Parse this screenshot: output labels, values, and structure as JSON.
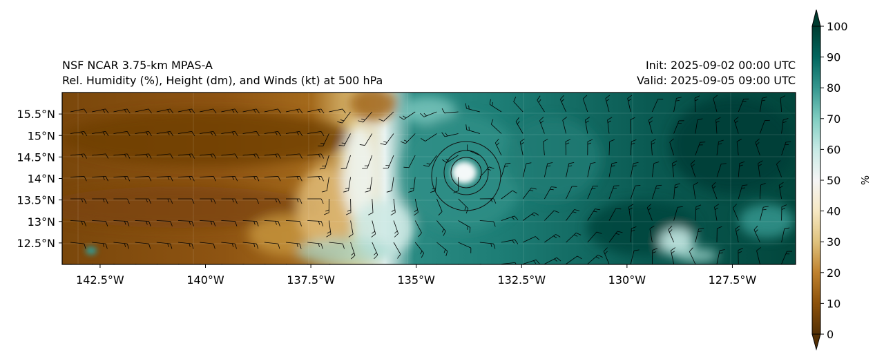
{
  "header": {
    "model": "NSF NCAR 3.75-km MPAS-A",
    "fields": "Rel. Humidity (%), Height (dm), and Winds (kt) at 500 hPa",
    "init": "Init: 2025-09-02 00:00 UTC",
    "valid": "Valid: 2025-09-05 09:00 UTC"
  },
  "map": {
    "lon_range": [
      -143.4,
      -126.0
    ],
    "lat_range": [
      12.0,
      16.0
    ],
    "lat_ticks": [
      {
        "value": 15.5,
        "label": "15.5°N"
      },
      {
        "value": 15.0,
        "label": "15°N"
      },
      {
        "value": 14.5,
        "label": "14.5°N"
      },
      {
        "value": 14.0,
        "label": "14°N"
      },
      {
        "value": 13.5,
        "label": "13.5°N"
      },
      {
        "value": 13.0,
        "label": "13°N"
      },
      {
        "value": 12.5,
        "label": "12.5°N"
      }
    ],
    "lon_ticks": [
      {
        "value": -142.5,
        "label": "142.5°W"
      },
      {
        "value": -140.0,
        "label": "140°W"
      },
      {
        "value": -137.5,
        "label": "137.5°W"
      },
      {
        "value": -135.0,
        "label": "135°W"
      },
      {
        "value": -132.5,
        "label": "132.5°W"
      },
      {
        "value": -130.0,
        "label": "130°W"
      },
      {
        "value": -127.5,
        "label": "127.5°W"
      }
    ],
    "storm_center": {
      "lon": -133.6,
      "lat": 14.1
    }
  },
  "colorbar": {
    "label": "%",
    "ticks": [
      "0",
      "10",
      "20",
      "30",
      "40",
      "50",
      "60",
      "70",
      "80",
      "90",
      "100"
    ],
    "colors": {
      "c0": "#543005",
      "c10": "#8c510a",
      "c20": "#bf812d",
      "c30": "#dfc27d",
      "c40": "#f6e8c3",
      "c50": "#f5f5f5",
      "c60": "#c7eae5",
      "c70": "#80cdc1",
      "c80": "#35978f",
      "c90": "#01665e",
      "c100": "#003c30"
    }
  }
}
